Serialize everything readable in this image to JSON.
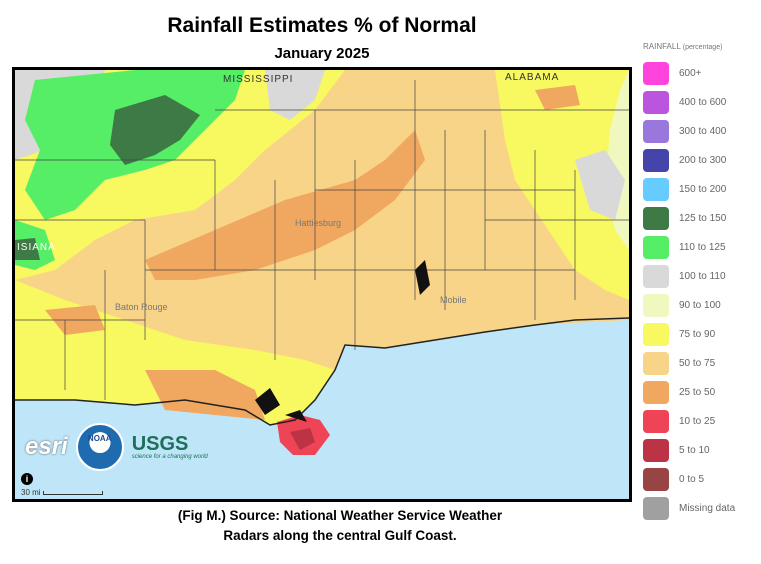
{
  "title": "Rainfall Estimates % of Normal",
  "subtitle": "January 2025",
  "map": {
    "state_labels": [
      "MISSISSIPPI",
      "ALABAMA",
      "ISIANA"
    ],
    "city_labels": [
      "Baton Rouge",
      "Hattiesburg",
      "Mobile"
    ],
    "logos": {
      "esri": "esri",
      "noaa": "NOAA",
      "usgs": "USGS",
      "usgs_tagline": "science for a changing world"
    },
    "info_icon": "i",
    "scale_label": "30 mi"
  },
  "caption_line1": "(Fig M.) Source: National Weather Service Weather",
  "caption_line2": "Radars along the central Gulf Coast.",
  "legend": {
    "title": "RAINFALL",
    "title_unit": "(percentage)",
    "items": [
      {
        "label": "600+",
        "color": "#ff44dd"
      },
      {
        "label": "400 to 600",
        "color": "#bb55dd"
      },
      {
        "label": "300 to 400",
        "color": "#9977dd"
      },
      {
        "label": "200 to 300",
        "color": "#4444aa"
      },
      {
        "label": "150 to 200",
        "color": "#66ccff"
      },
      {
        "label": "125 to 150",
        "color": "#3d7a45"
      },
      {
        "label": "110 to 125",
        "color": "#55ee66"
      },
      {
        "label": "100 to 110",
        "color": "#d9d9d9"
      },
      {
        "label": "90 to 100",
        "color": "#f0f8c0"
      },
      {
        "label": "75 to 90",
        "color": "#f8f860"
      },
      {
        "label": "50 to 75",
        "color": "#f8d488"
      },
      {
        "label": "25 to 50",
        "color": "#f0a860"
      },
      {
        "label": "10 to 25",
        "color": "#ee4455"
      },
      {
        "label": "5 to 10",
        "color": "#bb3344"
      },
      {
        "label": "0 to 5",
        "color": "#994444"
      },
      {
        "label": "Missing data",
        "color": "#a0a0a0"
      }
    ]
  }
}
